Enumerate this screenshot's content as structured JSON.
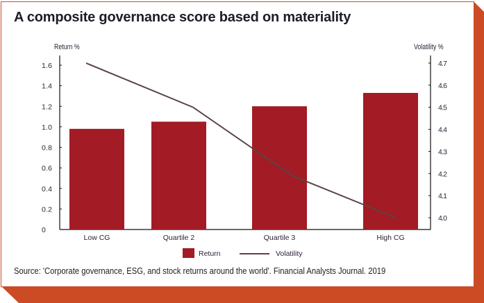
{
  "title": "A composite governance score based on materiality",
  "source": "Source: 'Corporate governance, ESG, and stock returns around the world'. Financial Analysts Journal. 2019",
  "colors": {
    "frame": "#cc4a24",
    "bar": "#a31b24",
    "line": "#5a4347"
  },
  "chart_data": {
    "type": "bar+line",
    "title": "A composite governance score based on materiality",
    "categories": [
      "Low CG",
      "Quartile 2",
      "Quartile 3",
      "High CG"
    ],
    "series": [
      {
        "name": "Return",
        "type": "bar",
        "axis": "left",
        "values": [
          0.98,
          1.05,
          1.2,
          1.33
        ]
      },
      {
        "name": "Volatility",
        "type": "line",
        "axis": "right",
        "values": [
          4.7,
          4.5,
          4.19,
          4.0
        ]
      }
    ],
    "ylabel_left": "Return %",
    "ylabel_right": "Volatility %",
    "yticks_left": [
      "0",
      "0.2",
      "0.4",
      "0.6",
      "0.8",
      "1.0",
      "1.2",
      "1.4",
      "1.6"
    ],
    "yticks_right": [
      "4.0",
      "4.1",
      "4.2",
      "4.3",
      "4.4",
      "4.5",
      "4.6",
      "4.7"
    ],
    "ylim_left": [
      0,
      1.6
    ],
    "ylim_right": [
      4.0,
      4.7
    ],
    "grid": false,
    "legend": "bottom"
  }
}
